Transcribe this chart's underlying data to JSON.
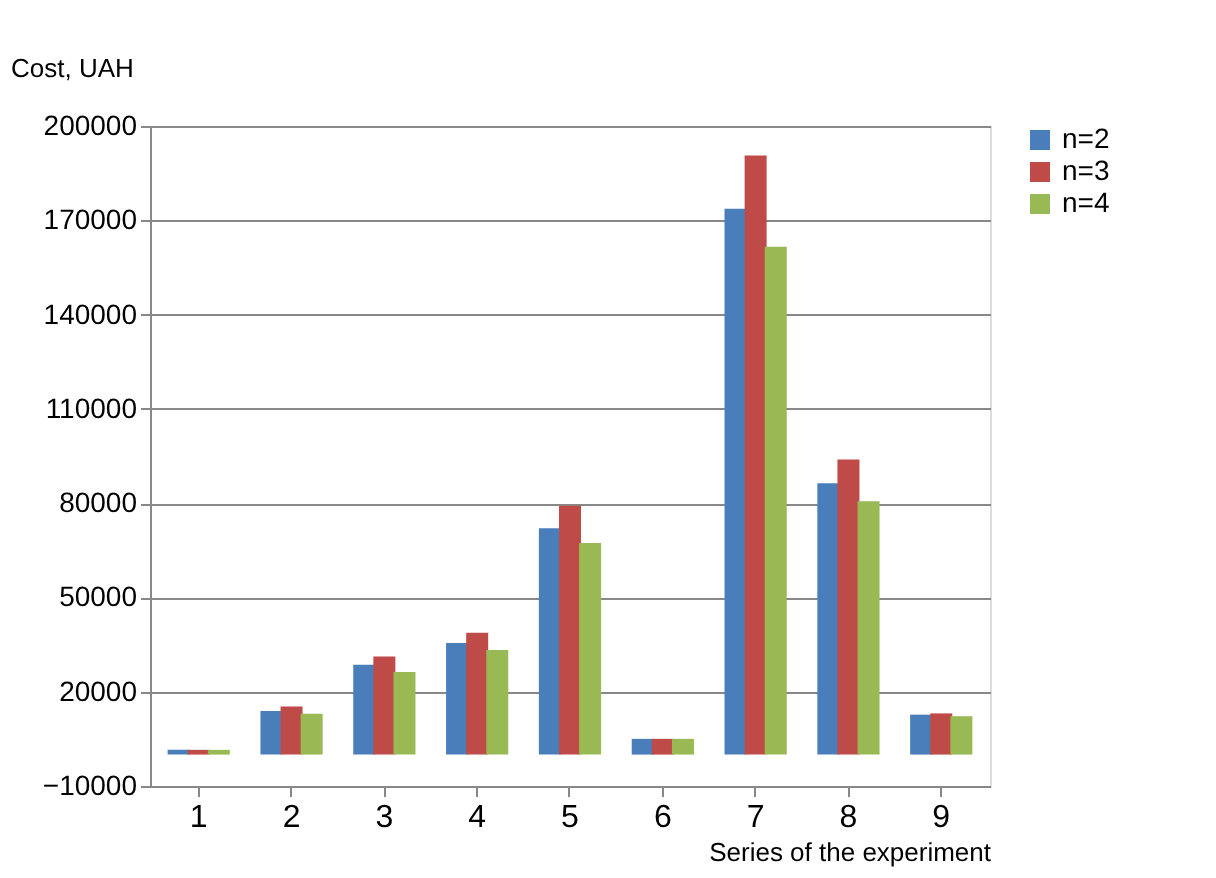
{
  "chart_data": {
    "type": "bar",
    "ylabel": "Cost, UAH",
    "xlabel": "Series of the experiment",
    "categories": [
      "1",
      "2",
      "3",
      "4",
      "5",
      "6",
      "7",
      "8",
      "9"
    ],
    "series": [
      {
        "name": "n=2",
        "color": "#4a7ebb",
        "values": [
          1500,
          13900,
          28600,
          35500,
          72000,
          5000,
          173700,
          86300,
          12700
        ]
      },
      {
        "name": "n=3",
        "color": "#be4b48",
        "values": [
          1500,
          15300,
          31200,
          38800,
          79200,
          5000,
          190600,
          93900,
          13100
        ]
      },
      {
        "name": "n=4",
        "color": "#98b954",
        "values": [
          1500,
          13000,
          26300,
          33300,
          67300,
          5000,
          161600,
          80600,
          12200
        ]
      }
    ],
    "ylim": [
      -10000,
      200000
    ],
    "yticks": [
      -10000,
      20000,
      50000,
      80000,
      110000,
      140000,
      170000,
      200000
    ],
    "grid": "y",
    "legend": "right"
  }
}
